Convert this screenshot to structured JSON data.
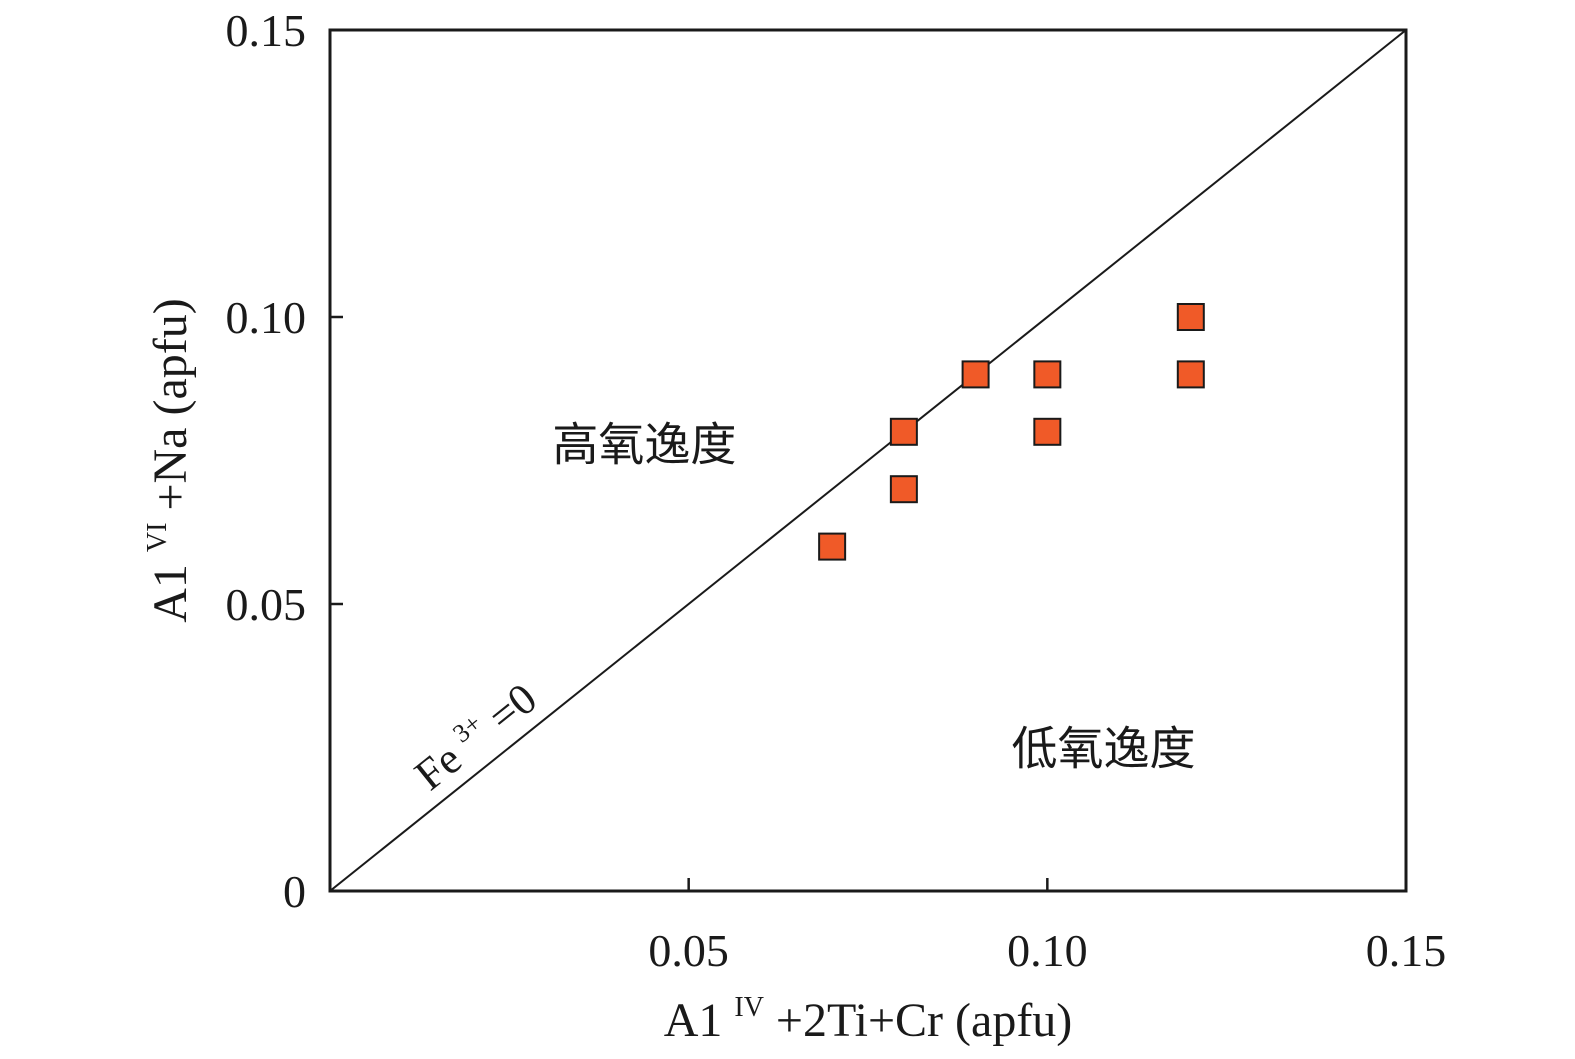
{
  "chart_data": {
    "type": "scatter",
    "xlabel": {
      "base": "A1",
      "superscript": "IV",
      "rest": "+2Ti+Cr (apfu)"
    },
    "ylabel": {
      "base": "A1",
      "superscript": "VI",
      "rest": "+Na (apfu)"
    },
    "xlim": [
      0,
      0.15
    ],
    "ylim": [
      0,
      0.15
    ],
    "x_ticks": [
      {
        "value": 0.05,
        "label": "0.05"
      },
      {
        "value": 0.1,
        "label": "0.10"
      },
      {
        "value": 0.15,
        "label": "0.15"
      }
    ],
    "y_ticks": [
      {
        "value": 0,
        "label": "0"
      },
      {
        "value": 0.05,
        "label": "0.05"
      },
      {
        "value": 0.1,
        "label": "0.10"
      },
      {
        "value": 0.15,
        "label": "0.15"
      }
    ],
    "series": [
      {
        "marker": "square",
        "color": "#f05a28",
        "edge_color": "#1a1a1a",
        "points": [
          {
            "x": 0.07,
            "y": 0.06
          },
          {
            "x": 0.08,
            "y": 0.07
          },
          {
            "x": 0.08,
            "y": 0.08
          },
          {
            "x": 0.09,
            "y": 0.09
          },
          {
            "x": 0.1,
            "y": 0.08
          },
          {
            "x": 0.1,
            "y": 0.09
          },
          {
            "x": 0.12,
            "y": 0.09
          },
          {
            "x": 0.12,
            "y": 0.1
          }
        ]
      }
    ],
    "reference_line": {
      "from": [
        0,
        0
      ],
      "to": [
        0.15,
        0.15
      ],
      "label_base": "Fe",
      "label_superscript": "3+",
      "label_rest": "=0"
    },
    "annotations": [
      {
        "text": "高氧逸度",
        "x": 0.031,
        "y": 0.075
      },
      {
        "text": "低氧逸度",
        "x": 0.095,
        "y": 0.022
      }
    ],
    "grid": false,
    "colors": {
      "axis": "#1a1a1a",
      "marker_fill": "#f05a28",
      "marker_edge": "#1a1a1a"
    }
  }
}
